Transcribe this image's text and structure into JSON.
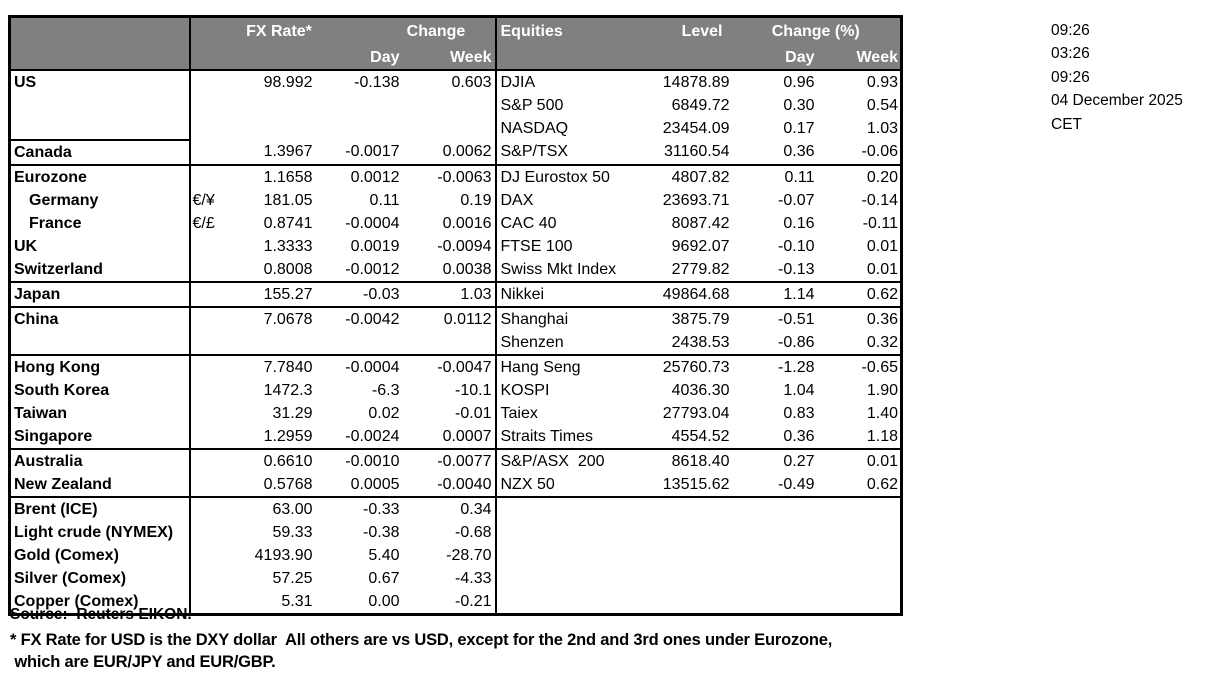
{
  "header": {
    "fx_rate": "FX Rate*",
    "change": "Change",
    "day": "Day",
    "week": "Week",
    "equities": "Equities",
    "level": "Level",
    "change_pct": "Change (%)"
  },
  "table": {
    "rows": [
      {
        "name": "US",
        "indent": false,
        "pair": "",
        "fx_rate": "98.992",
        "fx_day": "-0.138",
        "fx_week": "0.603",
        "eq_name": "DJIA",
        "eq_level": "14878.89",
        "eq_day": "0.96",
        "eq_week": "0.93"
      },
      {
        "name": "",
        "indent": false,
        "pair": "",
        "fx_rate": "",
        "fx_day": "",
        "fx_week": "",
        "eq_name": "S&P 500",
        "eq_level": "6849.72",
        "eq_day": "0.30",
        "eq_week": "0.54"
      },
      {
        "name": "",
        "indent": false,
        "pair": "",
        "fx_rate": "",
        "fx_day": "",
        "fx_week": "",
        "eq_name": "NASDAQ",
        "eq_level": "23454.09",
        "eq_day": "0.17",
        "eq_week": "1.03"
      },
      {
        "name": "Canada",
        "indent": false,
        "pair": "",
        "fx_rate": "1.3967",
        "fx_day": "-0.0017",
        "fx_week": "0.0062",
        "eq_name": "S&P/TSX",
        "eq_level": "31160.54",
        "eq_day": "0.36",
        "eq_week": "-0.06"
      },
      {
        "name": "Eurozone",
        "indent": false,
        "pair": "",
        "fx_rate": "1.1658",
        "fx_day": "0.0012",
        "fx_week": "-0.0063",
        "eq_name": "DJ Eurostox 50",
        "eq_level": "4807.82",
        "eq_day": "0.11",
        "eq_week": "0.20"
      },
      {
        "name": "Germany",
        "indent": true,
        "pair": "€/¥",
        "fx_rate": "181.05",
        "fx_day": "0.11",
        "fx_week": "0.19",
        "eq_name": "DAX",
        "eq_level": "23693.71",
        "eq_day": "-0.07",
        "eq_week": "-0.14"
      },
      {
        "name": "France",
        "indent": true,
        "pair": "€/£",
        "fx_rate": "0.8741",
        "fx_day": "-0.0004",
        "fx_week": "0.0016",
        "eq_name": "CAC 40",
        "eq_level": "8087.42",
        "eq_day": "0.16",
        "eq_week": "-0.11"
      },
      {
        "name": "UK",
        "indent": false,
        "pair": "",
        "fx_rate": "1.3333",
        "fx_day": "0.0019",
        "fx_week": "-0.0094",
        "eq_name": "FTSE 100",
        "eq_level": "9692.07",
        "eq_day": "-0.10",
        "eq_week": "0.01"
      },
      {
        "name": "Switzerland",
        "indent": false,
        "pair": "",
        "fx_rate": "0.8008",
        "fx_day": "-0.0012",
        "fx_week": "0.0038",
        "eq_name": "Swiss Mkt Index",
        "eq_level": "2779.82",
        "eq_day": "-0.13",
        "eq_week": "0.01"
      },
      {
        "name": "Japan",
        "indent": false,
        "pair": "",
        "fx_rate": "155.27",
        "fx_day": "-0.03",
        "fx_week": "1.03",
        "eq_name": "Nikkei",
        "eq_level": "49864.68",
        "eq_day": "1.14",
        "eq_week": "0.62"
      },
      {
        "name": "China",
        "indent": false,
        "pair": "",
        "fx_rate": "7.0678",
        "fx_day": "-0.0042",
        "fx_week": "0.0112",
        "eq_name": "Shanghai",
        "eq_level": "3875.79",
        "eq_day": "-0.51",
        "eq_week": "0.36"
      },
      {
        "name": "",
        "indent": false,
        "pair": "",
        "fx_rate": "",
        "fx_day": "",
        "fx_week": "",
        "eq_name": "Shenzen",
        "eq_level": "2438.53",
        "eq_day": "-0.86",
        "eq_week": "0.32"
      },
      {
        "name": "Hong Kong",
        "indent": false,
        "pair": "",
        "fx_rate": "7.7840",
        "fx_day": "-0.0004",
        "fx_week": "-0.0047",
        "eq_name": "Hang Seng",
        "eq_level": "25760.73",
        "eq_day": "-1.28",
        "eq_week": "-0.65"
      },
      {
        "name": "South Korea",
        "indent": false,
        "pair": "",
        "fx_rate": "1472.3",
        "fx_day": "-6.3",
        "fx_week": "-10.1",
        "eq_name": "KOSPI",
        "eq_level": "4036.30",
        "eq_day": "1.04",
        "eq_week": "1.90"
      },
      {
        "name": "Taiwan",
        "indent": false,
        "pair": "",
        "fx_rate": "31.29",
        "fx_day": "0.02",
        "fx_week": "-0.01",
        "eq_name": "Taiex",
        "eq_level": "27793.04",
        "eq_day": "0.83",
        "eq_week": "1.40"
      },
      {
        "name": "Singapore",
        "indent": false,
        "pair": "",
        "fx_rate": "1.2959",
        "fx_day": "-0.0024",
        "fx_week": "0.0007",
        "eq_name": "Straits Times",
        "eq_level": "4554.52",
        "eq_day": "0.36",
        "eq_week": "1.18"
      },
      {
        "name": "Australia",
        "indent": false,
        "pair": "",
        "fx_rate": "0.6610",
        "fx_day": "-0.0010",
        "fx_week": "-0.0077",
        "eq_name": "S&P/ASX  200",
        "eq_level": "8618.40",
        "eq_day": "0.27",
        "eq_week": "0.01"
      },
      {
        "name": "New Zealand",
        "indent": false,
        "pair": "",
        "fx_rate": "0.5768",
        "fx_day": "0.0005",
        "fx_week": "-0.0040",
        "eq_name": "NZX 50",
        "eq_level": "13515.62",
        "eq_day": "-0.49",
        "eq_week": "0.62"
      },
      {
        "name": "Brent (ICE)",
        "indent": false,
        "pair": "",
        "fx_rate": "63.00",
        "fx_day": "-0.33",
        "fx_week": "0.34",
        "eq_name": "",
        "eq_level": "",
        "eq_day": "",
        "eq_week": ""
      },
      {
        "name": "Light crude (NYMEX)",
        "indent": false,
        "pair": "",
        "fx_rate": "59.33",
        "fx_day": "-0.38",
        "fx_week": "-0.68",
        "eq_name": "",
        "eq_level": "",
        "eq_day": "",
        "eq_week": ""
      },
      {
        "name": "Gold (Comex)",
        "indent": false,
        "pair": "",
        "fx_rate": "4193.90",
        "fx_day": "5.40",
        "fx_week": "-28.70",
        "eq_name": "",
        "eq_level": "",
        "eq_day": "",
        "eq_week": ""
      },
      {
        "name": "Silver (Comex)",
        "indent": false,
        "pair": "",
        "fx_rate": "57.25",
        "fx_day": "0.67",
        "fx_week": "-4.33",
        "eq_name": "",
        "eq_level": "",
        "eq_day": "",
        "eq_week": ""
      },
      {
        "name": "Copper (Comex)",
        "indent": false,
        "pair": "",
        "fx_rate": "5.31",
        "fx_day": "0.00",
        "fx_week": "-0.21",
        "eq_name": "",
        "eq_level": "",
        "eq_day": "",
        "eq_week": ""
      }
    ]
  },
  "timestamps": {
    "time_1": "09:26",
    "time_2": "03:26",
    "time_3": "09:26",
    "date": "04 December 2025",
    "timezone": "CET"
  },
  "footer": {
    "source": "Source:  Reuters EIKON.",
    "note1": "* FX Rate for USD is the DXY dollar  All others are vs USD, except for the 2nd and 3rd ones under Eurozone,",
    "note2": " which are EUR/JPY and EUR/GBP."
  },
  "colors": {
    "header_bg": "#808080",
    "header_text": "#ffffff",
    "border": "#000000"
  }
}
